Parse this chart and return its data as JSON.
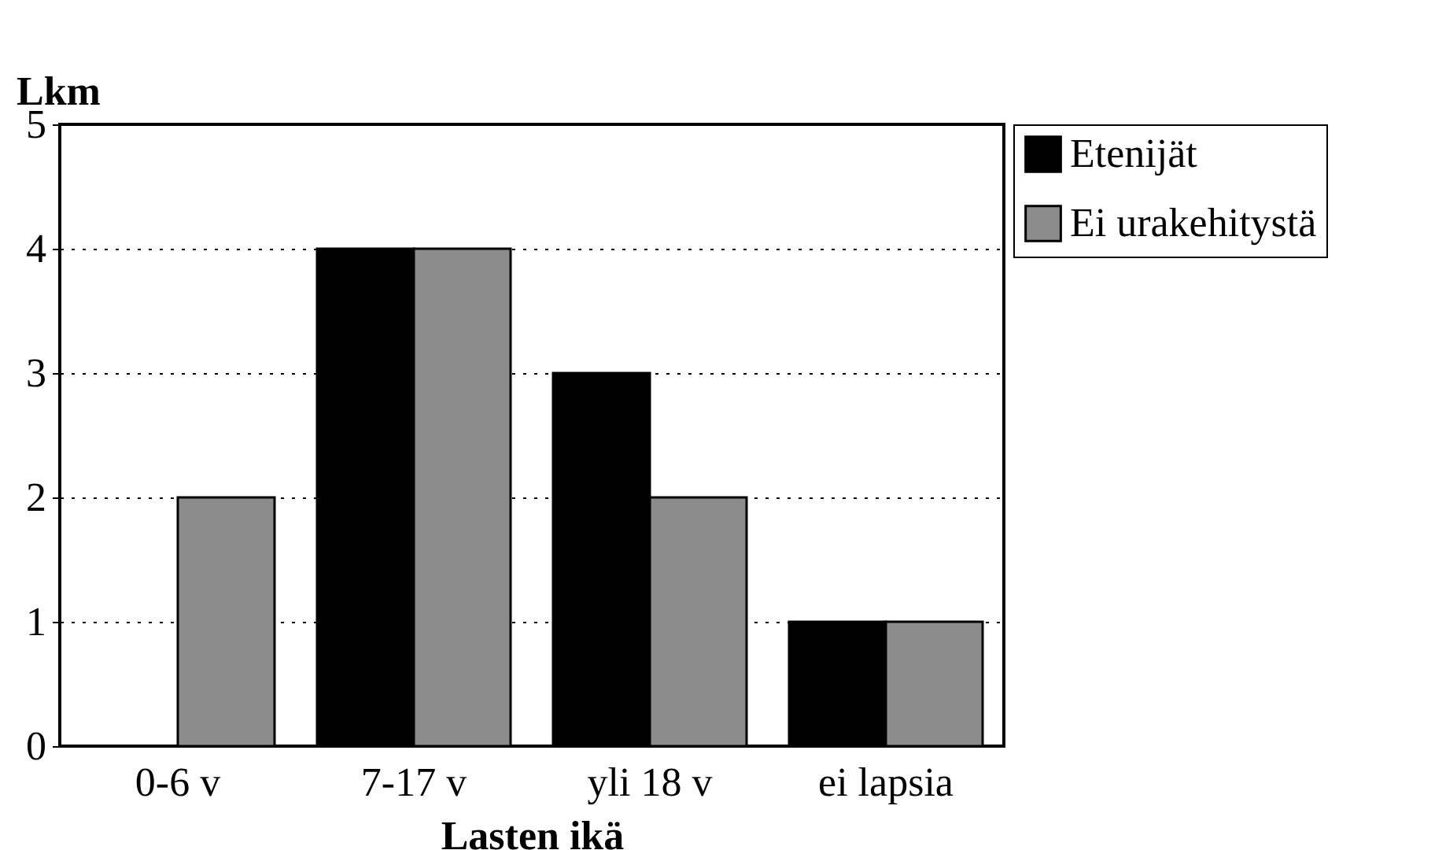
{
  "chart_data": {
    "type": "bar",
    "xlabel": "Lasten ikä",
    "ylabel": "Lkm",
    "categories": [
      "0-6 v",
      "7-17 v",
      "yli 18 v",
      "ei lapsia"
    ],
    "series": [
      {
        "name": "Etenijät",
        "color": "#000000",
        "values": [
          0,
          4,
          3,
          1
        ]
      },
      {
        "name": "Ei urakehitystä",
        "color": "#8c8c8c",
        "values": [
          2,
          4,
          2,
          1
        ]
      }
    ],
    "ylim": [
      0,
      5
    ],
    "yticks": [
      0,
      1,
      2,
      3,
      4,
      5
    ],
    "grid": "y",
    "legend": "right"
  }
}
